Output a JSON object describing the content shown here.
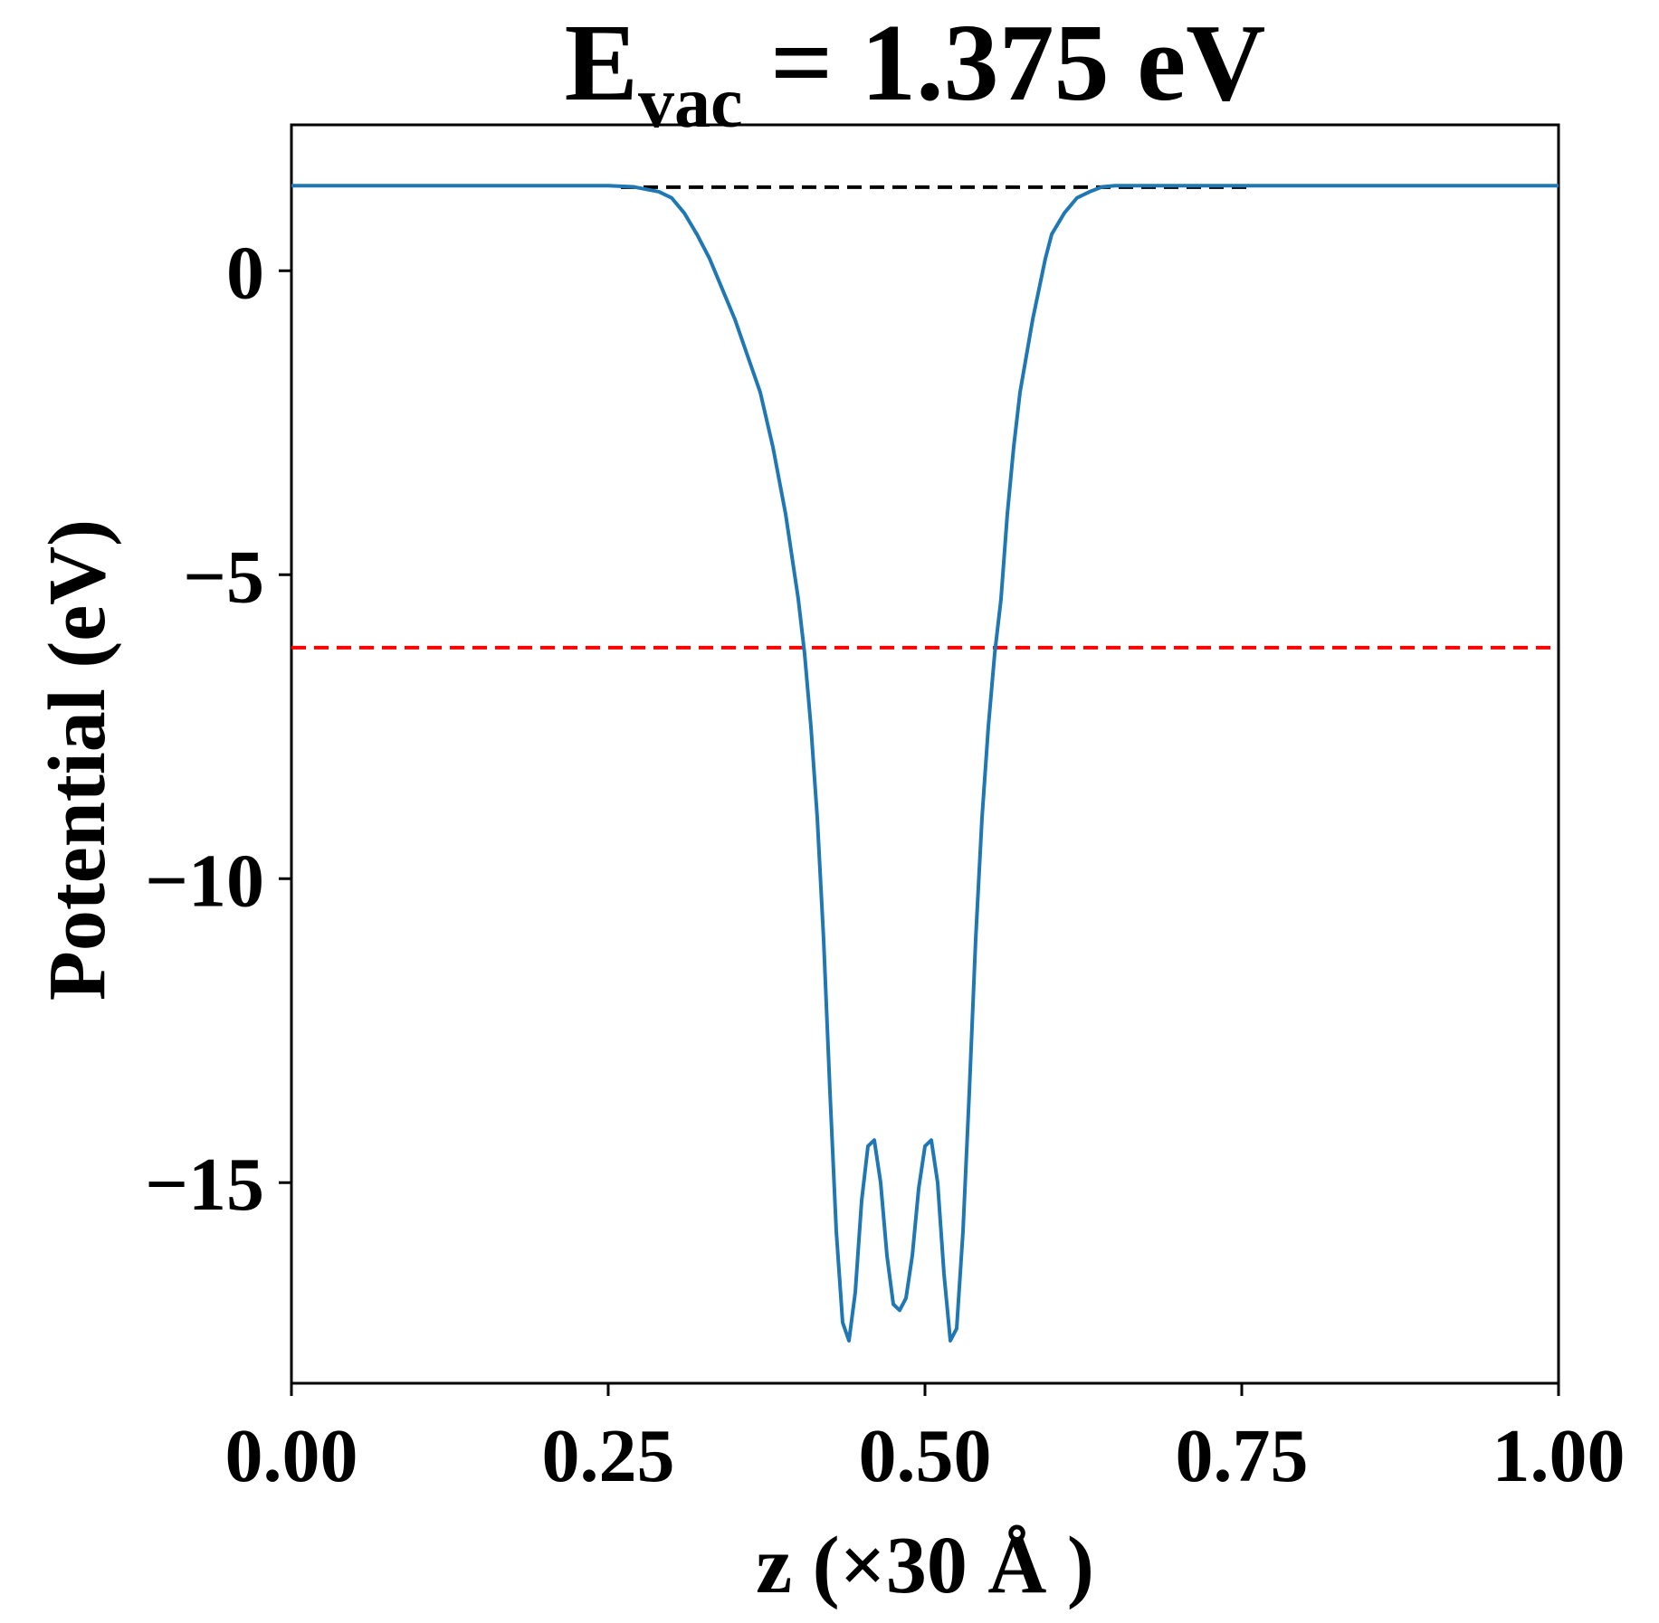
{
  "chart_data": {
    "type": "line",
    "title": {
      "main": "E",
      "subscript": "vac",
      "rest": " = 1.375 eV"
    },
    "xlabel": "z (×30 Å )",
    "ylabel": "Potential (eV)",
    "xlim": [
      0.0,
      1.0
    ],
    "ylim": [
      -18.3,
      2.4
    ],
    "xticks": [
      0.0,
      0.25,
      0.5,
      0.75,
      1.0
    ],
    "xtick_labels": [
      "0.00",
      "0.25",
      "0.50",
      "0.75",
      "1.00"
    ],
    "yticks": [
      0,
      -5,
      -10,
      -15
    ],
    "ytick_labels": [
      "0",
      "−5",
      "−10",
      "−15"
    ],
    "grid": false,
    "legend": "none",
    "series": [
      {
        "color": "#1f77b4",
        "style": "solid",
        "x": [
          0.0,
          0.05,
          0.1,
          0.15,
          0.2,
          0.25,
          0.27,
          0.29,
          0.3,
          0.31,
          0.32,
          0.33,
          0.34,
          0.35,
          0.36,
          0.37,
          0.38,
          0.39,
          0.4,
          0.405,
          0.41,
          0.415,
          0.42,
          0.425,
          0.43,
          0.435,
          0.44,
          0.445,
          0.45,
          0.455,
          0.46,
          0.465,
          0.47,
          0.475,
          0.48,
          0.485,
          0.49,
          0.495,
          0.5,
          0.505,
          0.51,
          0.515,
          0.52,
          0.525,
          0.53,
          0.535,
          0.54,
          0.545,
          0.55,
          0.555,
          0.56,
          0.565,
          0.57,
          0.575,
          0.58,
          0.585,
          0.59,
          0.595,
          0.6,
          0.61,
          0.62,
          0.63,
          0.64,
          0.65,
          0.66,
          0.67,
          0.68,
          0.69,
          0.7,
          0.71,
          0.73,
          0.75,
          0.8,
          0.85,
          0.9,
          0.95,
          1.0
        ],
        "y": [
          1.4,
          1.4,
          1.4,
          1.4,
          1.4,
          1.4,
          1.38,
          1.3,
          1.2,
          0.95,
          0.6,
          0.2,
          -0.3,
          -0.8,
          -1.4,
          -2.0,
          -2.9,
          -4.0,
          -5.4,
          -6.3,
          -7.5,
          -9.0,
          -11.0,
          -13.5,
          -15.8,
          -17.3,
          -17.6,
          -16.8,
          -15.3,
          -14.4,
          -14.3,
          -15.0,
          -16.2,
          -17.0,
          -17.1,
          -16.9,
          -16.2,
          -15.1,
          -14.4,
          -14.3,
          -15.0,
          -16.5,
          -17.6,
          -17.4,
          -15.8,
          -13.5,
          -11.0,
          -9.0,
          -7.5,
          -6.3,
          -5.4,
          -4.0,
          -2.9,
          -2.0,
          -1.4,
          -0.8,
          -0.3,
          0.2,
          0.6,
          0.95,
          1.2,
          1.3,
          1.38,
          1.4,
          1.4,
          1.4,
          1.4,
          1.4,
          1.4,
          1.4,
          1.4,
          1.4,
          1.4,
          1.4,
          1.4,
          1.4,
          1.4
        ]
      }
    ],
    "reference_lines": [
      {
        "y": 1.375,
        "color": "#000000",
        "style": "dashed",
        "x_range": [
          0.26,
          0.76
        ]
      },
      {
        "y": -6.2,
        "color": "#ff0000",
        "style": "dashed",
        "x_range": [
          0.0,
          1.0
        ]
      }
    ]
  }
}
